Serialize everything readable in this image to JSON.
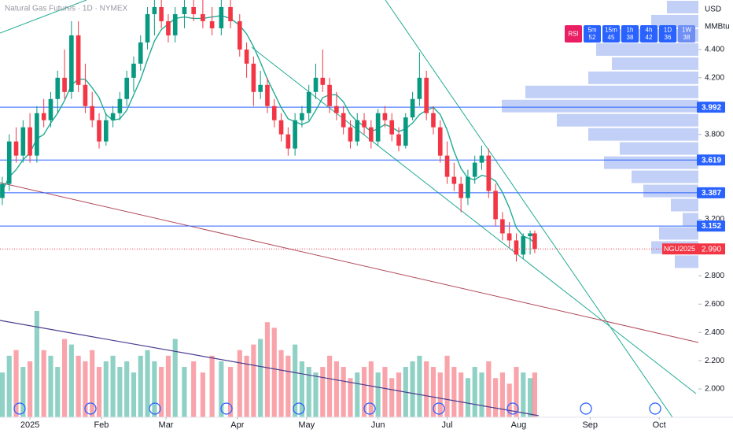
{
  "chart_data": {
    "type": "candlestick",
    "title": "Natural Gas Futures · 1D · NYMEX",
    "currency": "USD",
    "unit": "MMBtu",
    "xlim": [
      -13,
      290
    ],
    "xticks": [
      {
        "value": 0,
        "label": "2025"
      },
      {
        "value": 31,
        "label": "Feb"
      },
      {
        "value": 59,
        "label": "Mar"
      },
      {
        "value": 90,
        "label": "Apr"
      },
      {
        "value": 120,
        "label": "May"
      },
      {
        "value": 151,
        "label": "Jun"
      },
      {
        "value": 181,
        "label": "Jul"
      },
      {
        "value": 212,
        "label": "Aug"
      },
      {
        "value": 243,
        "label": "Sep"
      },
      {
        "value": 273,
        "label": "Oct"
      }
    ],
    "ylim": [
      1.8,
      4.75
    ],
    "yticks": [
      {
        "value": 4.4,
        "label": "4.400"
      },
      {
        "value": 4.2,
        "label": "4.200"
      },
      {
        "value": 3.8,
        "label": "3.800"
      },
      {
        "value": 3.2,
        "label": "3.200"
      },
      {
        "value": 2.8,
        "label": "2.800"
      },
      {
        "value": 2.6,
        "label": "2.600"
      },
      {
        "value": 2.4,
        "label": "2.400"
      },
      {
        "value": 2.2,
        "label": "2.200"
      },
      {
        "value": 2.0,
        "label": "2.000"
      }
    ],
    "up_color": "#089981",
    "down_color": "#f23645",
    "x": [
      -12,
      -9,
      -6,
      -3,
      0,
      3,
      6,
      9,
      12,
      15,
      18,
      21,
      24,
      27,
      30,
      33,
      36,
      39,
      42,
      45,
      48,
      51,
      54,
      57,
      60,
      63,
      67,
      71,
      75,
      79,
      83,
      87,
      91,
      94,
      97,
      100,
      103,
      106,
      109,
      112,
      115,
      118,
      121,
      124,
      127,
      130,
      133,
      136,
      139,
      142,
      145,
      148,
      151,
      154,
      157,
      160,
      163,
      166,
      169,
      172,
      175,
      178,
      181,
      184,
      187,
      190,
      193,
      196,
      199,
      202,
      205,
      208,
      211,
      214,
      217,
      219
    ],
    "open": [
      3.35,
      3.45,
      3.75,
      3.65,
      3.85,
      3.65,
      3.95,
      3.9,
      4.05,
      4.2,
      4.1,
      4.5,
      4.15,
      4.0,
      3.9,
      3.75,
      3.9,
      3.95,
      4.05,
      4.2,
      4.3,
      4.45,
      4.65,
      4.7,
      4.6,
      4.5,
      4.65,
      4.7,
      4.65,
      4.6,
      4.55,
      4.7,
      4.6,
      4.4,
      4.3,
      4.1,
      4.15,
      4.0,
      3.9,
      3.8,
      3.7,
      3.9,
      3.95,
      4.1,
      4.2,
      4.15,
      4.0,
      3.95,
      3.85,
      3.75,
      3.9,
      3.85,
      3.75,
      3.95,
      3.9,
      3.8,
      3.72,
      3.92,
      4.05,
      4.2,
      3.95,
      3.85,
      3.65,
      3.5,
      3.45,
      3.35,
      3.5,
      3.6,
      3.65,
      3.4,
      3.2,
      3.1,
      3.05,
      2.95,
      3.08,
      3.1
    ],
    "high": [
      3.5,
      3.8,
      3.85,
      3.9,
      3.95,
      4.0,
      4.05,
      4.1,
      4.25,
      4.4,
      4.6,
      4.6,
      4.3,
      4.1,
      3.95,
      3.95,
      4.0,
      4.1,
      4.25,
      4.35,
      4.5,
      4.7,
      4.75,
      4.75,
      4.65,
      4.7,
      4.75,
      4.75,
      4.75,
      4.7,
      4.75,
      4.75,
      4.65,
      4.45,
      4.35,
      4.25,
      4.2,
      4.05,
      3.95,
      3.85,
      3.95,
      4.0,
      4.15,
      4.3,
      4.4,
      4.2,
      4.1,
      4.0,
      3.9,
      3.95,
      3.95,
      3.9,
      3.98,
      4.0,
      3.95,
      3.85,
      3.95,
      4.1,
      4.38,
      4.25,
      4.0,
      3.9,
      3.75,
      3.6,
      3.5,
      3.55,
      3.65,
      3.72,
      3.7,
      3.45,
      3.25,
      3.18,
      3.1,
      3.1,
      3.12,
      3.12
    ],
    "low": [
      3.3,
      3.4,
      3.6,
      3.6,
      3.6,
      3.6,
      3.85,
      3.85,
      3.95,
      4.05,
      4.05,
      4.1,
      3.95,
      3.85,
      3.7,
      3.72,
      3.85,
      3.9,
      4.0,
      4.1,
      4.25,
      4.4,
      4.5,
      4.55,
      4.45,
      4.45,
      4.55,
      4.6,
      4.55,
      4.5,
      4.5,
      4.55,
      4.35,
      4.2,
      4.0,
      4.05,
      3.95,
      3.85,
      3.75,
      3.65,
      3.65,
      3.85,
      3.9,
      4.05,
      4.1,
      3.95,
      3.9,
      3.8,
      3.7,
      3.72,
      3.8,
      3.7,
      3.72,
      3.85,
      3.75,
      3.68,
      3.7,
      3.9,
      4.0,
      3.9,
      3.8,
      3.6,
      3.45,
      3.4,
      3.25,
      3.3,
      3.45,
      3.55,
      3.35,
      3.15,
      3.05,
      3.0,
      2.9,
      2.92,
      2.95,
      2.96
    ],
    "close": [
      3.45,
      3.75,
      3.65,
      3.85,
      3.65,
      3.95,
      3.9,
      4.05,
      4.2,
      4.1,
      4.5,
      4.15,
      4.0,
      3.9,
      3.75,
      3.9,
      3.95,
      4.05,
      4.2,
      4.3,
      4.45,
      4.65,
      4.7,
      4.6,
      4.5,
      4.65,
      4.7,
      4.65,
      4.6,
      4.55,
      4.7,
      4.6,
      4.4,
      4.3,
      4.1,
      4.15,
      4.0,
      3.9,
      3.8,
      3.7,
      3.9,
      3.95,
      4.1,
      4.2,
      4.15,
      4.0,
      3.95,
      3.85,
      3.75,
      3.9,
      3.85,
      3.75,
      3.95,
      3.9,
      3.8,
      3.72,
      3.92,
      4.05,
      4.2,
      3.95,
      3.85,
      3.65,
      3.5,
      3.45,
      3.35,
      3.5,
      3.6,
      3.65,
      3.4,
      3.2,
      3.1,
      3.05,
      2.95,
      3.08,
      3.1,
      2.99
    ],
    "sma": [
      3.4,
      3.5,
      3.55,
      3.62,
      3.67,
      3.77,
      3.8,
      3.88,
      3.95,
      4.04,
      4.15,
      4.19,
      4.19,
      4.13,
      4.06,
      3.94,
      3.9,
      3.91,
      3.97,
      4.08,
      4.19,
      4.33,
      4.46,
      4.54,
      4.58,
      4.62,
      4.63,
      4.62,
      4.62,
      4.63,
      4.64,
      4.62,
      4.57,
      4.51,
      4.42,
      4.31,
      4.19,
      4.09,
      3.99,
      3.91,
      3.89,
      3.87,
      3.89,
      3.97,
      4.06,
      4.08,
      4.08,
      4.03,
      3.94,
      3.89,
      3.86,
      3.82,
      3.84,
      3.87,
      3.85,
      3.82,
      3.84,
      3.88,
      3.94,
      3.97,
      3.99,
      3.94,
      3.83,
      3.68,
      3.56,
      3.49,
      3.48,
      3.51,
      3.5,
      3.47,
      3.39,
      3.28,
      3.14,
      3.08,
      3.06,
      3.03
    ],
    "sma_color": "#22ab94",
    "volume": [
      40,
      55,
      60,
      45,
      50,
      95,
      60,
      55,
      45,
      70,
      65,
      55,
      50,
      60,
      45,
      50,
      55,
      45,
      50,
      40,
      55,
      60,
      50,
      45,
      55,
      70,
      45,
      50,
      40,
      55,
      50,
      45,
      60,
      55,
      65,
      70,
      85,
      80,
      60,
      55,
      65,
      50,
      45,
      40,
      45,
      55,
      50,
      45,
      35,
      40,
      45,
      50,
      40,
      45,
      35,
      40,
      45,
      50,
      55,
      50,
      45,
      40,
      55,
      45,
      40,
      35,
      45,
      40,
      50,
      35,
      40,
      30,
      45,
      40,
      35,
      40
    ],
    "profile_levels": [
      2.9,
      3.0,
      3.1,
      3.2,
      3.3,
      3.4,
      3.5,
      3.6,
      3.7,
      3.8,
      3.9,
      4.0,
      4.1,
      4.2,
      4.3,
      4.4,
      4.5,
      4.6,
      4.7
    ],
    "profile_values": [
      30,
      60,
      50,
      20,
      35,
      70,
      85,
      120,
      100,
      140,
      180,
      250,
      220,
      140,
      110,
      130,
      100,
      60,
      40
    ],
    "profile_color": "#b3c4f5",
    "levels": [
      3.992,
      3.619,
      3.387,
      3.152
    ],
    "level_color": "#2962ff",
    "last_price": {
      "symbol": "NGU2025",
      "value": 2.99,
      "label": "2.990"
    },
    "rsi": {
      "label": "RSI",
      "items": [
        {
          "tf": "5m",
          "value": 52
        },
        {
          "tf": "15m",
          "value": 45
        },
        {
          "tf": "1h",
          "value": 38
        },
        {
          "tf": "4h",
          "value": 42
        },
        {
          "tf": "1D",
          "value": 36
        },
        {
          "tf": "1W",
          "value": 38
        }
      ]
    }
  }
}
